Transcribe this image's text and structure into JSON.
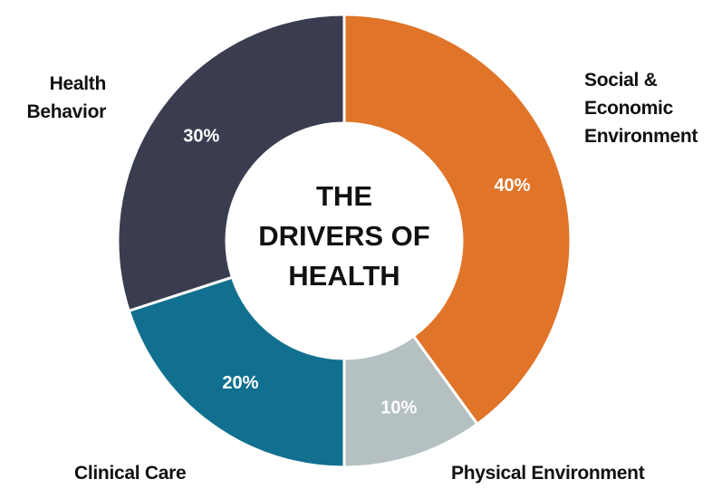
{
  "chart_data": {
    "type": "pie",
    "title": "THE DRIVERS OF HEALTH",
    "categories": [
      "Social & Economic Environment",
      "Physical Environment",
      "Clinical Care",
      "Health Behavior"
    ],
    "values": [
      40,
      10,
      20,
      30
    ],
    "value_labels": [
      "40%",
      "10%",
      "20%",
      "30%"
    ],
    "colors": [
      "#e07428",
      "#b4c0c1",
      "#11708f",
      "#3a3d50"
    ]
  }
}
